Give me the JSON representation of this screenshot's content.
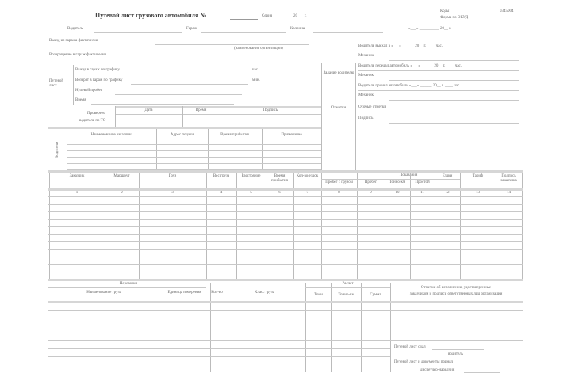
{
  "header": {
    "title": "Путевой лист грузового автомобиля №",
    "series": "Серия",
    "date_prefix": "«___»",
    "year": "20___ г.",
    "codes": "Коды",
    "okud": "Форма по ОКУД",
    "form_code": "0345004"
  },
  "row1": {
    "driver": "Водитель",
    "garage": "Гараж",
    "column": "Колонна",
    "date": "«___» __________ 20__ г."
  },
  "left": {
    "departure": "Выезд из гаража фактически",
    "return": "Возвращение в гараж фактически",
    "org_caption": "(наименование организации)",
    "bracket_label": "Путевой лист",
    "rows": [
      "Выезд в гараж по графику",
      "Возврат в гараж по графику",
      "Нулевой пробег",
      "Время"
    ],
    "hours": "час.",
    "min": "мин.",
    "date_mark": "20__ г.",
    "table_label": "Проверено",
    "table_sub": "водитель по ТО",
    "table_cols": [
      "Дата",
      "Время",
      "Подпись"
    ]
  },
  "tasks": {
    "side_label": "Водители",
    "cols": [
      "Наименование заказчика",
      "Адрес подачи",
      "Время прибытия",
      "Примечание"
    ]
  },
  "middle": {
    "label_top": "Задание водителю",
    "label_bottom": "Отметки"
  },
  "right": {
    "rows": [
      "Водитель выехал в «___» ______ 20__ г. ____ час.",
      "Механик",
      "Водитель передал автомобиль «___» ______ 20__ г. ____ час.",
      "Механик",
      "Водитель принял автомобиль «___» ______ 20__ г. ____ час.",
      "Механик",
      "Особые отметки",
      "Подпись"
    ]
  },
  "main_table": {
    "group": "Показания",
    "cols": [
      "Заказчик",
      "Маршрут",
      "Груз",
      "Вес груза",
      "Расстояние",
      "Время прибытия",
      "Кол-во ездок",
      "Пробег с грузом",
      "Пробег",
      "Тонно-км",
      "Простой",
      "Ездки",
      "Тариф",
      "Подпись заказчика"
    ],
    "numbers": [
      "1",
      "2",
      "3",
      "4",
      "5",
      "6",
      "7",
      "8",
      "9",
      "10",
      "11",
      "12",
      "13",
      "14"
    ]
  },
  "bottom": {
    "group_left": "Перевозки",
    "cols_left": [
      "Наименование груза",
      "Единица измерения",
      "Кол-во",
      "Класс груза"
    ],
    "group_mid": "Расчет",
    "cols_mid": [
      "Тонн",
      "Тонно-км",
      "Сумма"
    ],
    "right_title": "Отметки об исполнении, удостоверенные",
    "right_sub": "заказчиком и подписи ответственных лиц организации",
    "sign1": "Путевой лист сдал",
    "sign1_caption": "водитель",
    "sign2": "Путевой лист и документы принял",
    "sign2_caption": "диспетчер-нарядчик"
  }
}
